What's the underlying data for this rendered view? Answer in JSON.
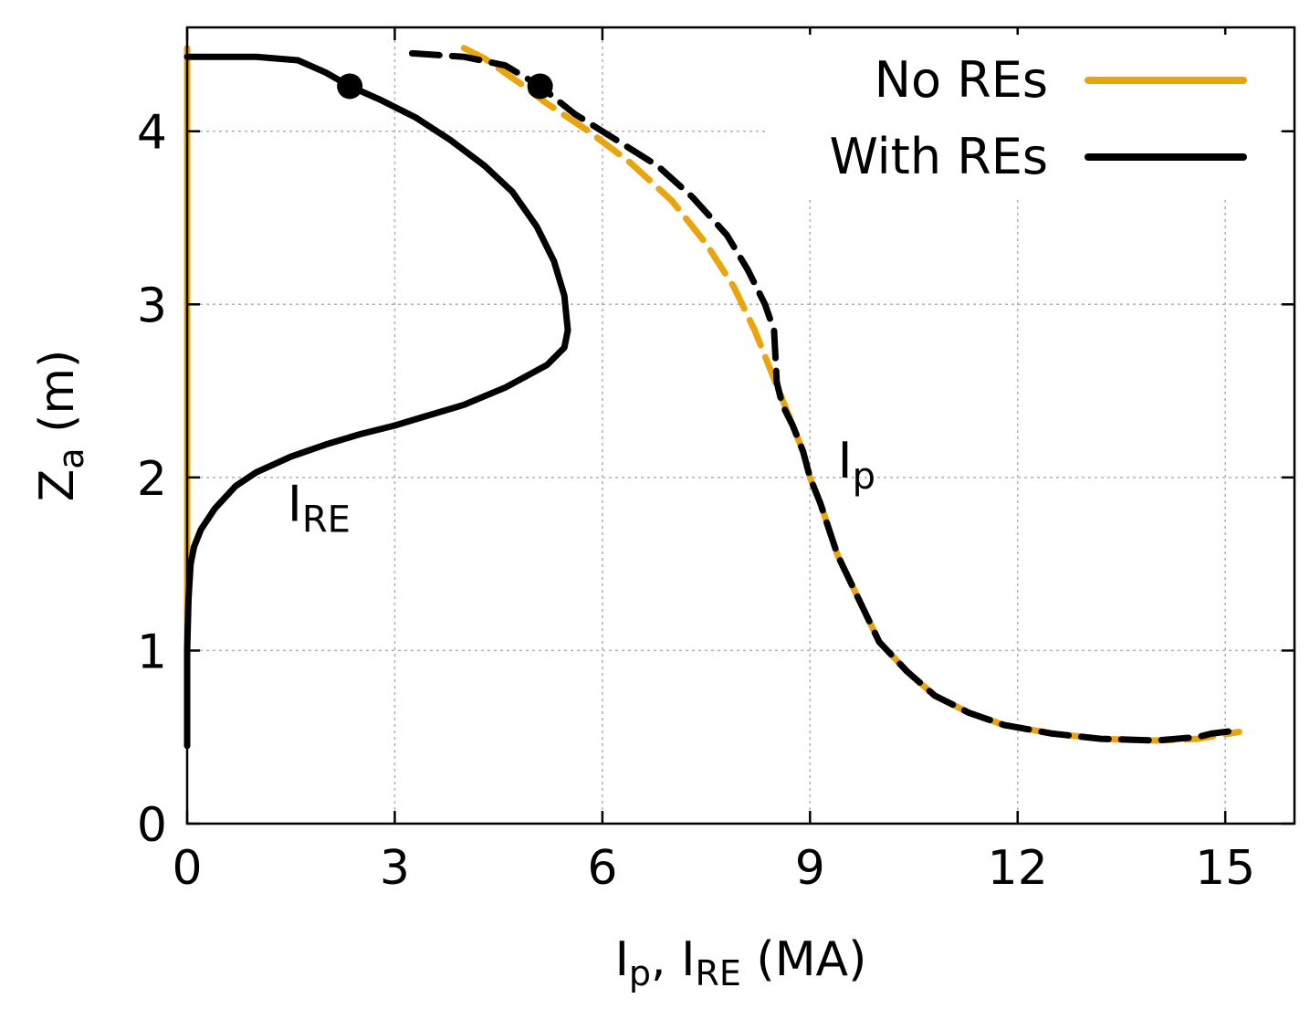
{
  "chart_data": {
    "type": "line",
    "xlabel": "I_p, I_RE (MA)",
    "xlabel_parts": [
      "I",
      "p",
      ", I",
      "RE",
      " (MA)"
    ],
    "ylabel": "Z_a (m)",
    "ylabel_parts": [
      "Z",
      "a",
      " (m)"
    ],
    "xlim": [
      0,
      16
    ],
    "ylim": [
      0,
      4.6
    ],
    "x_ticks": [
      0,
      3,
      6,
      9,
      12,
      15
    ],
    "y_ticks": [
      0,
      1,
      2,
      3,
      4
    ],
    "grid": true,
    "legend_position": "top-right",
    "legend": [
      {
        "label": "No REs",
        "color": "#e8a50d"
      },
      {
        "label": "With REs",
        "color": "#000000"
      }
    ],
    "annotations": [
      {
        "text": "I",
        "sub": "RE",
        "x": 1.45,
        "y": 1.75
      },
      {
        "text": "I",
        "sub": "p",
        "x": 9.4,
        "y": 2.0
      }
    ],
    "series": [
      {
        "name": "No REs I_RE",
        "legend": "No REs",
        "color": "#e8a50d",
        "style": "solid",
        "x": [
          0,
          0
        ],
        "y": [
          0.45,
          4.48
        ]
      },
      {
        "name": "With REs I_RE",
        "legend": "With REs",
        "color": "#000000",
        "style": "solid",
        "x": [
          0.0,
          0.0,
          0.02,
          0.05,
          0.1,
          0.2,
          0.4,
          0.7,
          1.0,
          1.5,
          2.0,
          2.5,
          3.0,
          3.5,
          4.0,
          4.6,
          5.2,
          5.45,
          5.5,
          5.45,
          5.3,
          5.05,
          4.7,
          4.3,
          3.8,
          3.3,
          2.8,
          2.35,
          2.0,
          1.6,
          1.0,
          0.5,
          0.0
        ],
        "y": [
          0.45,
          1.0,
          1.3,
          1.5,
          1.6,
          1.7,
          1.82,
          1.95,
          2.03,
          2.12,
          2.19,
          2.25,
          2.3,
          2.36,
          2.42,
          2.52,
          2.65,
          2.75,
          2.85,
          3.05,
          3.25,
          3.45,
          3.65,
          3.8,
          3.95,
          4.08,
          4.18,
          4.26,
          4.34,
          4.41,
          4.43,
          4.43,
          4.43
        ]
      },
      {
        "name": "No REs I_p",
        "legend": "No REs",
        "color": "#e8a50d",
        "style": "dashed",
        "x": [
          4.0,
          4.3,
          4.8,
          5.2,
          5.8,
          6.4,
          7.0,
          7.5,
          7.9,
          8.2,
          8.45,
          8.6,
          8.75,
          8.9,
          9.0,
          9.15,
          9.4,
          9.7,
          10.0,
          10.4,
          10.8,
          11.3,
          11.8,
          12.5,
          13.2,
          14.0,
          14.6,
          15.2
        ],
        "y": [
          4.48,
          4.42,
          4.28,
          4.16,
          4.0,
          3.82,
          3.6,
          3.35,
          3.1,
          2.85,
          2.6,
          2.45,
          2.3,
          2.15,
          2.0,
          1.85,
          1.55,
          1.3,
          1.05,
          0.88,
          0.74,
          0.64,
          0.57,
          0.52,
          0.49,
          0.48,
          0.49,
          0.53
        ]
      },
      {
        "name": "With REs I_p",
        "legend": "With REs",
        "color": "#000000",
        "style": "dashed",
        "x": [
          3.25,
          4.0,
          4.6,
          5.1,
          5.6,
          6.2,
          6.8,
          7.3,
          7.8,
          8.1,
          8.35,
          8.48,
          8.5,
          8.52,
          8.6,
          8.75,
          8.9,
          9.0,
          9.15,
          9.4,
          9.7,
          10.0,
          10.4,
          10.8,
          11.3,
          11.8,
          12.5,
          13.2,
          14.0,
          14.6,
          14.8,
          15.2
        ],
        "y": [
          4.45,
          4.43,
          4.38,
          4.26,
          4.1,
          3.95,
          3.8,
          3.62,
          3.4,
          3.2,
          3.0,
          2.85,
          2.7,
          2.55,
          2.42,
          2.3,
          2.15,
          2.0,
          1.85,
          1.55,
          1.3,
          1.05,
          0.88,
          0.74,
          0.64,
          0.57,
          0.52,
          0.49,
          0.48,
          0.5,
          0.52,
          0.54
        ]
      }
    ],
    "markers": [
      {
        "x": 2.35,
        "y": 4.26,
        "color": "#000000"
      },
      {
        "x": 5.1,
        "y": 4.26,
        "color": "#000000"
      }
    ]
  }
}
